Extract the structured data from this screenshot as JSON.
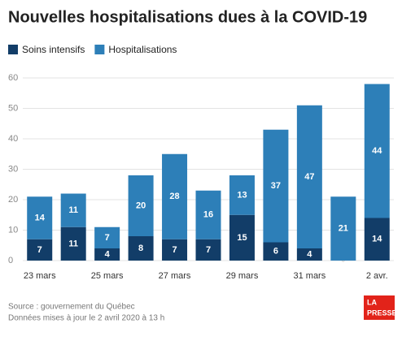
{
  "chart_data": {
    "type": "stacked-bar",
    "title": "Nouvelles hospitalisations dues à la COVID-19",
    "categories": [
      "23 mars",
      null,
      "25 mars",
      null,
      "27 mars",
      null,
      "29 mars",
      null,
      "31 mars",
      null,
      "2 avr."
    ],
    "series": [
      {
        "name": "Soins intensifs",
        "color": "#123d68",
        "values": [
          7,
          11,
          4,
          8,
          7,
          7,
          15,
          6,
          4,
          0,
          14
        ]
      },
      {
        "name": "Hospitalisations",
        "color": "#2d7fb8",
        "values": [
          14,
          11,
          7,
          20,
          28,
          16,
          13,
          37,
          47,
          21,
          44
        ]
      }
    ],
    "ylim": [
      0,
      60
    ],
    "yticks": [
      0,
      10,
      20,
      30,
      40,
      50,
      60
    ],
    "grid": true,
    "source": "Source : gouvernement du Québec",
    "updated": "Données mises à jour le 2 avril 2020 à 13 h",
    "logo": [
      "LA",
      "PRESSE"
    ]
  }
}
